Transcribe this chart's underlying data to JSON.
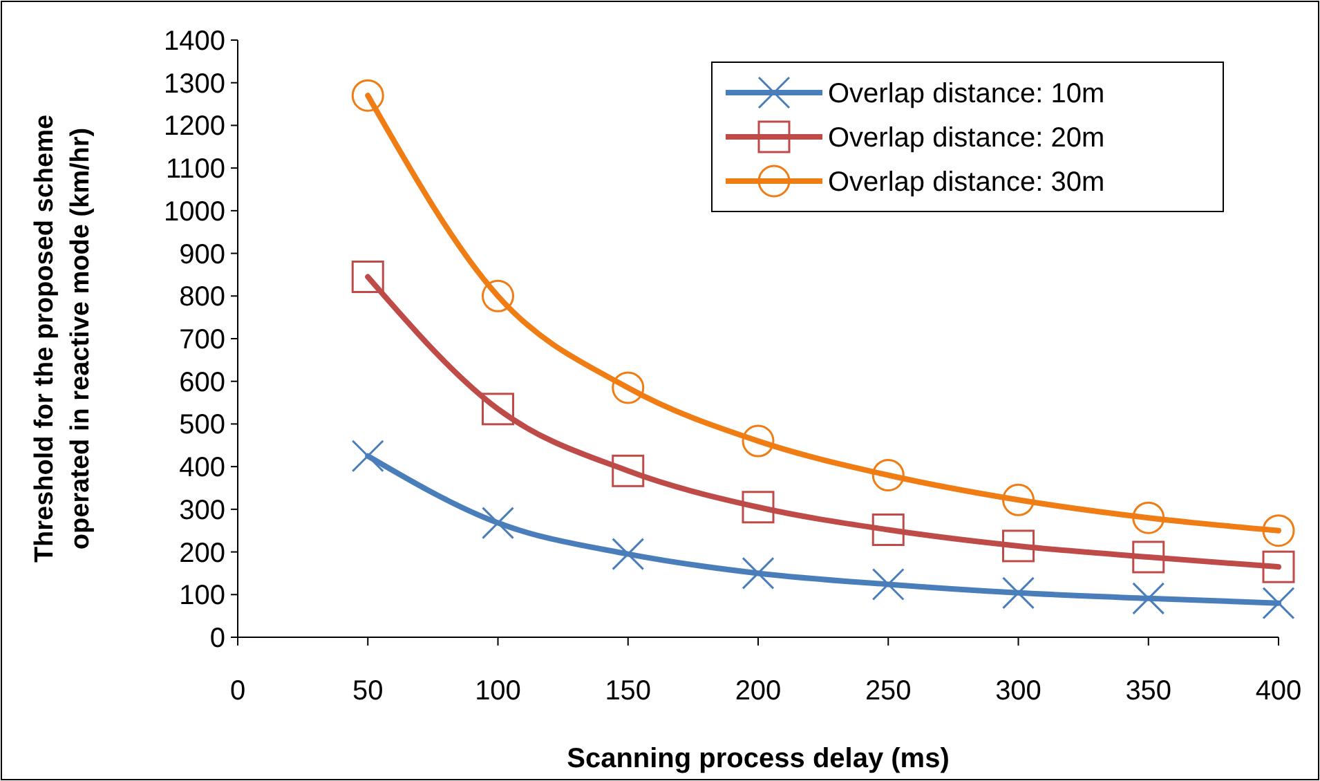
{
  "chart_data": {
    "type": "line",
    "xlabel": "Scanning process delay (ms)",
    "ylabel": "Threshold for the proposed scheme operated in reactive mode (km/hr)",
    "x": [
      50,
      100,
      150,
      200,
      250,
      300,
      350,
      400
    ],
    "series": [
      {
        "name": "Overlap distance: 10m",
        "color": "#4a7ebb",
        "marker": "cross",
        "values": [
          425,
          268,
          195,
          150,
          124,
          104,
          91,
          80
        ]
      },
      {
        "name": "Overlap distance: 20m",
        "color": "#be4b48",
        "marker": "square",
        "values": [
          845,
          535,
          390,
          305,
          252,
          214,
          188,
          165
        ]
      },
      {
        "name": "Overlap distance: 30m",
        "color": "#f07c14",
        "marker": "circle",
        "values": [
          1270,
          800,
          585,
          460,
          380,
          322,
          280,
          250
        ]
      }
    ],
    "xlim": [
      0,
      400
    ],
    "xticks": [
      0,
      50,
      100,
      150,
      200,
      250,
      300,
      350,
      400
    ],
    "ylim": [
      0,
      1400
    ],
    "yticks": [
      0,
      100,
      200,
      300,
      400,
      500,
      600,
      700,
      800,
      900,
      1000,
      1100,
      1200,
      1300,
      1400
    ],
    "grid": false,
    "legend": "top right",
    "line_style": "solid"
  }
}
